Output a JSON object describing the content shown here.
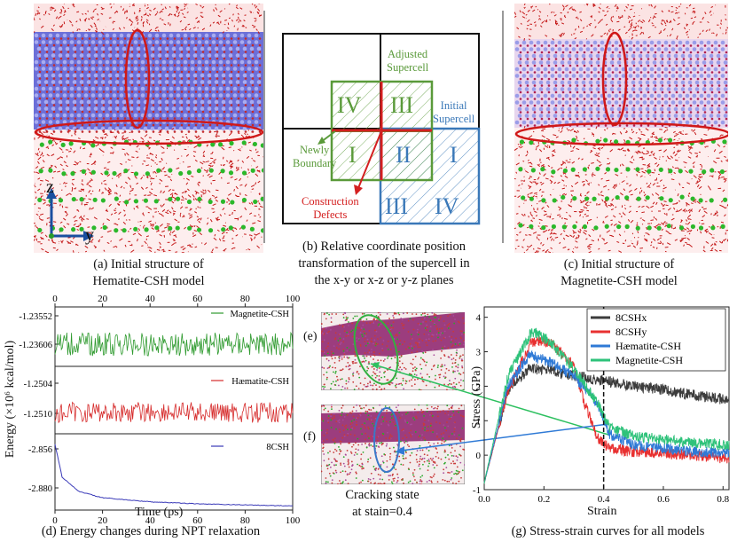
{
  "panel_a": {
    "caption_line1": "(a) Initial structure of",
    "caption_line2": "Hematite-CSH model",
    "axis_z": "z",
    "axis_y": "y"
  },
  "panel_b": {
    "caption_line1": "(b) Relative coordinate position",
    "caption_line2": "transformation of the supercell in",
    "caption_line3": "the x-y or x-z or y-z planes",
    "adjusted_line1": "Adjusted",
    "adjusted_line2": "Supercell",
    "initial_line1": "Initial",
    "initial_line2": "Supercell",
    "newly_line1": "Newly",
    "newly_line2": "Boundary",
    "defects_line1": "Construction",
    "defects_line2": "Defects",
    "green_quadrants": [
      "IV",
      "III",
      "I",
      "II"
    ],
    "blue_quadrants": [
      "I",
      "III",
      "IV"
    ],
    "colors": {
      "green": "#5a9a3a",
      "blue": "#3a78b8",
      "red": "#d42020"
    }
  },
  "panel_c": {
    "caption_line1": "(c) Initial structure of",
    "caption_line2": "Magnetite-CSH model"
  },
  "panel_d": {
    "caption": "(d) Energy changes during NPT relaxation",
    "y_label": "Energy (×10⁶ kcal/mol)",
    "x_label": "Time (ps)",
    "x_ticks": [
      "0",
      "20",
      "40",
      "60",
      "80",
      "100"
    ],
    "top_ticks": [
      "0",
      "20",
      "40",
      "60",
      "80",
      "100"
    ],
    "sub1": {
      "legend": "Magnetite-CSH",
      "ticks": [
        "-1.23552",
        "-1.23606"
      ],
      "color": "#2e9a2e"
    },
    "sub2": {
      "legend": "Hæmatite-CSH",
      "ticks": [
        "-1.2504",
        "-1.2510"
      ],
      "color": "#d62a2a"
    },
    "sub3": {
      "legend": "8CSH",
      "ticks": [
        "-2.856",
        "-2.880"
      ],
      "color": "#3a3ab8"
    }
  },
  "panel_ef": {
    "label_e": "(e)",
    "label_f": "(f)",
    "caption_line1": "Cracking state",
    "caption_line2": "at stain=0.4"
  },
  "panel_g": {
    "caption": "(g) Stress-strain curves for all models",
    "x_label": "Strain",
    "y_label": "Stress (GPa)",
    "x_ticks": [
      "0.0",
      "0.2",
      "0.4",
      "0.6",
      "0.8"
    ],
    "y_ticks": [
      "-1",
      "0",
      "1",
      "2",
      "3",
      "4"
    ],
    "legend": [
      {
        "name": "8CSHx",
        "color": "#3c3c3c"
      },
      {
        "name": "8CSHy",
        "color": "#e83030"
      },
      {
        "name": "Hæmatite-CSH",
        "color": "#2f7ad6"
      },
      {
        "name": "Magnetite-CSH",
        "color": "#2ec27a"
      }
    ]
  },
  "chart_data": [
    {
      "type": "line",
      "title": "Energy changes during NPT relaxation",
      "xlabel": "Time (ps)",
      "ylabel": "Energy (×10⁶ kcal/mol)",
      "xlim": [
        0,
        100
      ],
      "series": [
        {
          "name": "Magnetite-CSH",
          "x": [
            0,
            100
          ],
          "values": [
            -1.2359,
            -1.2359
          ],
          "ylim": [
            -1.2365,
            -1.2352
          ]
        },
        {
          "name": "Hæmatite-CSH",
          "x": [
            0,
            100
          ],
          "values": [
            -1.2507,
            -1.2507
          ],
          "ylim": [
            -1.2513,
            -1.2501
          ]
        },
        {
          "name": "8CSH",
          "x": [
            0,
            3,
            10,
            20,
            40,
            60,
            80,
            100
          ],
          "values": [
            -2.856,
            -2.872,
            -2.879,
            -2.882,
            -2.884,
            -2.885,
            -2.8855,
            -2.886
          ],
          "ylim": [
            -2.888,
            -2.854
          ]
        }
      ]
    },
    {
      "type": "line",
      "title": "Stress-strain curves for all models",
      "xlabel": "Strain",
      "ylabel": "Stress (GPa)",
      "xlim": [
        0,
        0.82
      ],
      "ylim": [
        -1,
        4.3
      ],
      "annotations": [
        "vertical dashed line at strain=0.4"
      ],
      "series": [
        {
          "name": "8CSHx",
          "x": [
            0,
            0.08,
            0.15,
            0.2,
            0.3,
            0.4,
            0.5,
            0.6,
            0.7,
            0.82
          ],
          "values": [
            -0.8,
            1.9,
            2.5,
            2.5,
            2.3,
            2.15,
            2.0,
            1.9,
            1.75,
            1.6
          ]
        },
        {
          "name": "8CSHy",
          "x": [
            0,
            0.08,
            0.16,
            0.22,
            0.3,
            0.34,
            0.38,
            0.42,
            0.5,
            0.6,
            0.7,
            0.82
          ],
          "values": [
            -0.8,
            1.9,
            3.3,
            3.3,
            2.6,
            1.4,
            0.5,
            0.2,
            0.1,
            0.05,
            0.0,
            -0.1
          ]
        },
        {
          "name": "Hæmatite-CSH",
          "x": [
            0,
            0.08,
            0.15,
            0.22,
            0.3,
            0.38,
            0.42,
            0.5,
            0.6,
            0.7,
            0.82
          ],
          "values": [
            -0.8,
            2.0,
            2.9,
            2.7,
            2.3,
            1.5,
            0.6,
            0.3,
            0.2,
            0.1,
            0.05
          ]
        },
        {
          "name": "Magnetite-CSH",
          "x": [
            0,
            0.08,
            0.16,
            0.22,
            0.3,
            0.38,
            0.42,
            0.5,
            0.6,
            0.7,
            0.82
          ],
          "values": [
            -0.8,
            2.3,
            3.6,
            3.3,
            2.5,
            1.5,
            0.8,
            0.55,
            0.45,
            0.35,
            0.3
          ]
        }
      ]
    }
  ]
}
